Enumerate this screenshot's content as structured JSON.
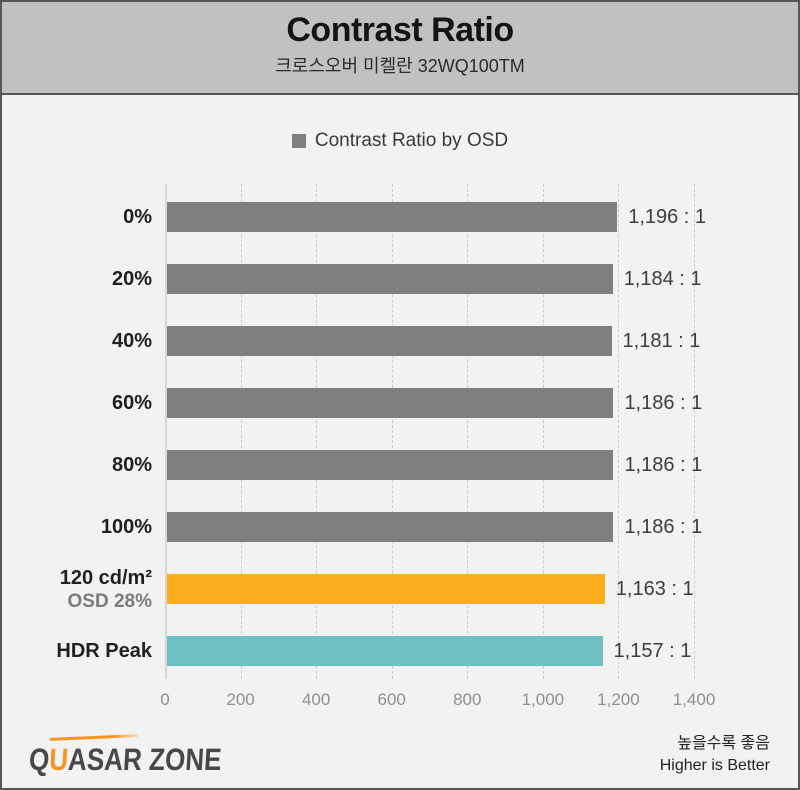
{
  "header": {
    "title": "Contrast Ratio",
    "subtitle": "크로스오버 미켈란 32WQ100TM"
  },
  "legend": {
    "label": "Contrast Ratio by OSD",
    "swatch_color": "#7f7f7f"
  },
  "chart_data": {
    "type": "bar",
    "orientation": "horizontal",
    "title": "Contrast Ratio",
    "subtitle": "크로스오버 미켈란 32WQ100TM",
    "legend_entries": [
      "Contrast Ratio by OSD"
    ],
    "legend_position": "top-center",
    "xlim": [
      0,
      1400
    ],
    "grid": "vertical-dashed",
    "x_ticks": [
      "0",
      "200",
      "400",
      "600",
      "800",
      "1,000",
      "1,200",
      "1,400"
    ],
    "rows": [
      {
        "label": "0%",
        "sublabel": "",
        "value": 1196,
        "value_label": "1,196 : 1",
        "color": "#7f7f7f"
      },
      {
        "label": "20%",
        "sublabel": "",
        "value": 1184,
        "value_label": "1,184 : 1",
        "color": "#7f7f7f"
      },
      {
        "label": "40%",
        "sublabel": "",
        "value": 1181,
        "value_label": "1,181 : 1",
        "color": "#7f7f7f"
      },
      {
        "label": "60%",
        "sublabel": "",
        "value": 1186,
        "value_label": "1,186 : 1",
        "color": "#7f7f7f"
      },
      {
        "label": "80%",
        "sublabel": "",
        "value": 1186,
        "value_label": "1,186 : 1",
        "color": "#7f7f7f"
      },
      {
        "label": "100%",
        "sublabel": "",
        "value": 1186,
        "value_label": "1,186 : 1",
        "color": "#7f7f7f"
      },
      {
        "label": "120 cd/m²",
        "sublabel": "OSD 28%",
        "value": 1163,
        "value_label": "1,163 : 1",
        "color": "#fbad1c"
      },
      {
        "label": "HDR Peak",
        "sublabel": "",
        "value": 1157,
        "value_label": "1,157 : 1",
        "color": "#6fbfc5"
      }
    ]
  },
  "footer": {
    "logo_text_q": "Q",
    "logo_text_u": "U",
    "logo_text_rest": "ASAR ZONE",
    "note_ko": "높을수록 좋음",
    "note_en": "Higher is Better"
  },
  "colors": {
    "header_bg": "#c1c1c1",
    "body_bg": "#f2f2f2",
    "frame_border": "#55565a",
    "bar_gray": "#7f7f7f",
    "bar_orange": "#fbad1c",
    "bar_cyan": "#6fbfc5",
    "logo_orange": "#f7941d"
  }
}
